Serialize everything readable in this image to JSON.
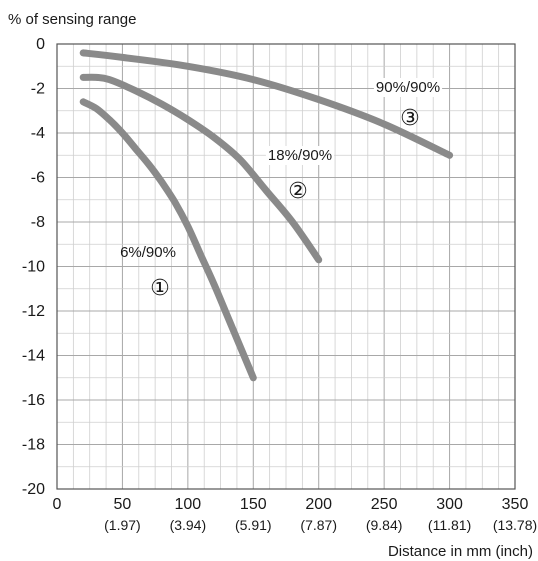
{
  "chart_data": {
    "type": "line",
    "title": "",
    "ylabel": "% of sensing range",
    "xlabel": "Distance in mm (inch)",
    "xlim": [
      0,
      350
    ],
    "ylim": [
      -20,
      0
    ],
    "x_ticks": [
      0,
      50,
      100,
      150,
      200,
      250,
      300,
      350
    ],
    "x_tick_labels": [
      "0",
      "50",
      "100",
      "150",
      "200",
      "250",
      "300",
      "350"
    ],
    "x_tick_sublabels": [
      "",
      "(1.97)",
      "(3.94)",
      "(5.91)",
      "(7.87)",
      "(9.84)",
      "(11.81)",
      "(13.78)"
    ],
    "y_ticks": [
      0,
      -2,
      -4,
      -6,
      -8,
      -10,
      -12,
      -14,
      -16,
      -18,
      -20
    ],
    "y_tick_labels": [
      "0",
      "-2",
      "-4",
      "-6",
      "-8",
      "-10",
      "-12",
      "-14",
      "-16",
      "-18",
      "-20"
    ],
    "grid": true,
    "series": [
      {
        "marker": "①",
        "label": "6%/90%",
        "color": "#8a8a8a",
        "x": [
          20,
          30,
          40,
          50,
          60,
          70,
          80,
          90,
          100,
          110,
          120,
          130,
          140,
          150
        ],
        "y": [
          -2.6,
          -2.9,
          -3.4,
          -4.0,
          -4.7,
          -5.4,
          -6.2,
          -7.1,
          -8.2,
          -9.5,
          -10.8,
          -12.2,
          -13.6,
          -15.0
        ]
      },
      {
        "marker": "②",
        "label": "18%/90%",
        "color": "#8a8a8a",
        "x": [
          20,
          30,
          40,
          60,
          80,
          100,
          120,
          140,
          160,
          180,
          200
        ],
        "y": [
          -1.5,
          -1.5,
          -1.6,
          -2.1,
          -2.7,
          -3.4,
          -4.2,
          -5.2,
          -6.6,
          -8.0,
          -9.7
        ]
      },
      {
        "marker": "③",
        "label": "90%/90%",
        "color": "#8a8a8a",
        "x": [
          20,
          50,
          100,
          150,
          200,
          250,
          300
        ],
        "y": [
          -0.4,
          -0.6,
          -1.0,
          -1.6,
          -2.5,
          -3.6,
          -5.0
        ]
      }
    ]
  }
}
